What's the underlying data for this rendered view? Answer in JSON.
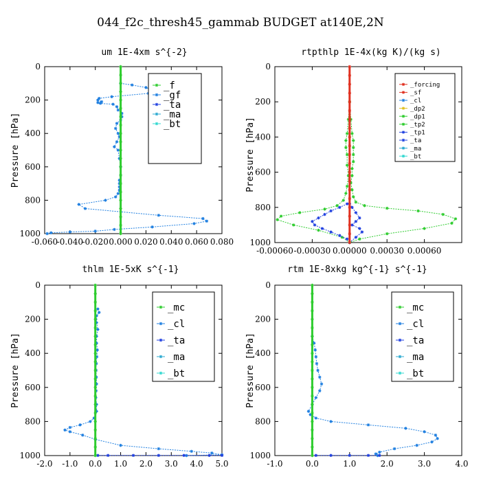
{
  "title": "044_f2c_thresh45_gammab  BUDGET at140E,2N",
  "chart_data": [
    {
      "type": "line",
      "title": "um   1E-4xm s^{-2}",
      "ylabel": "Pressure [hPa]",
      "xlim": [
        -0.06,
        0.08
      ],
      "ylim": [
        1000,
        0
      ],
      "xticks": [
        "-0.060",
        "-0.040",
        "-0.020",
        "0.000",
        "0.020",
        "0.040",
        "0.060",
        "0.080"
      ],
      "yticks": [
        "0",
        "200",
        "400",
        "600",
        "800",
        "1000"
      ],
      "legend": [
        "_f",
        "_gf",
        "_ta",
        "_ma",
        "_bt"
      ],
      "legend_position": "top-right",
      "series": [
        {
          "name": "_gf",
          "color": "#1f7fe0",
          "x": [
            0,
            0.009,
            0.02,
            0.025,
            0.022,
            -0.007,
            -0.017,
            -0.018,
            -0.015,
            -0.018,
            -0.016,
            -0.006,
            -0.003,
            -0.002,
            0.001,
            0.001,
            0.0,
            -0.003,
            -0.004,
            -0.002,
            -0.001,
            -0.003,
            -0.005,
            -0.002,
            -0.001,
            0.0,
            0.0,
            -0.001,
            -0.001,
            -0.001,
            -0.001,
            -0.002,
            -0.004,
            -0.012,
            -0.033,
            -0.028,
            0.03,
            0.065,
            0.068,
            0.058,
            0.025,
            -0.005,
            -0.02,
            -0.04,
            -0.055,
            -0.058
          ],
          "y": [
            100,
            110,
            125,
            140,
            160,
            180,
            190,
            200,
            210,
            215,
            220,
            225,
            240,
            260,
            280,
            300,
            320,
            340,
            370,
            400,
            420,
            450,
            480,
            500,
            550,
            600,
            650,
            680,
            700,
            720,
            740,
            760,
            780,
            800,
            825,
            850,
            890,
            910,
            925,
            940,
            960,
            975,
            985,
            990,
            995,
            1000
          ]
        },
        {
          "name": "_f",
          "color": "#2ecc2e",
          "x": [
            0,
            0,
            0,
            0,
            0,
            0,
            0,
            0,
            0,
            0,
            0,
            0,
            0,
            0,
            0,
            0,
            0,
            0,
            0,
            0,
            0
          ],
          "y": [
            0,
            50,
            100,
            150,
            200,
            250,
            300,
            350,
            400,
            450,
            500,
            550,
            600,
            650,
            700,
            750,
            800,
            850,
            900,
            950,
            1000
          ]
        }
      ]
    },
    {
      "type": "line",
      "title": "rtpthlp   1E-4x(kg K)/(kg s)",
      "ylabel": "Pressure [hPa]",
      "xlim": [
        -0.0006,
        0.0009
      ],
      "ylim": [
        1000,
        0
      ],
      "xticks": [
        "-0.00060",
        "-0.00030",
        "0.00000",
        "0.00030",
        "0.00060"
      ],
      "yticks": [
        "0",
        "200",
        "400",
        "600",
        "800",
        "1000"
      ],
      "legend": [
        "_forcing",
        "_sf",
        "_cl",
        "_dp2",
        "_dp1",
        "_tp2",
        "_tp1",
        "_ta",
        "_ma",
        "_bt"
      ],
      "legend_position": "top-right",
      "series": [
        {
          "name": "_dp1",
          "color": "#2ecc2e",
          "x": [
            0,
            1e-05,
            2e-05,
            3e-05,
            3e-05,
            3e-05,
            3e-05,
            2e-05,
            2e-05,
            1e-05,
            2e-05,
            3e-05,
            5e-05,
            0.00012,
            0.0003,
            0.00055,
            0.00075,
            0.00085,
            0.00082,
            0.0006,
            0.0003,
            8e-05,
            0
          ],
          "y": [
            200,
            300,
            380,
            420,
            460,
            500,
            540,
            580,
            620,
            660,
            700,
            740,
            770,
            790,
            805,
            820,
            840,
            865,
            890,
            920,
            950,
            980,
            1000
          ]
        },
        {
          "name": "_tp2",
          "color": "#2ecc2e",
          "x": [
            0,
            -1e-05,
            -2e-05,
            -3e-05,
            -3e-05,
            -2e-05,
            -2e-05,
            -1e-05,
            -2e-05,
            -3e-05,
            -5e-05,
            -0.0001,
            -0.0002,
            -0.0004,
            -0.00055,
            -0.00058,
            -0.00045,
            -0.00025,
            -6e-05,
            0
          ],
          "y": [
            200,
            300,
            380,
            420,
            460,
            500,
            560,
            620,
            680,
            720,
            760,
            790,
            810,
            830,
            850,
            870,
            900,
            930,
            970,
            1000
          ]
        },
        {
          "name": "_tp1",
          "color": "#2040e0",
          "x": [
            0,
            2e-05,
            5e-05,
            8e-05,
            5e-05,
            2e-05,
            8e-05,
            0.0001,
            5e-05,
            0
          ],
          "y": [
            780,
            800,
            830,
            860,
            880,
            900,
            920,
            940,
            970,
            1000
          ]
        },
        {
          "name": "_ta",
          "color": "#2040e0",
          "x": [
            -2e-05,
            -8e-05,
            -0.00015,
            -0.0002,
            -0.00025,
            -0.0003,
            -0.00028,
            -0.00022,
            -0.00015,
            -8e-05,
            -2e-05
          ],
          "y": [
            780,
            800,
            820,
            840,
            860,
            880,
            900,
            920,
            940,
            960,
            980
          ]
        },
        {
          "name": "_forcing",
          "color": "#e03020",
          "x": [
            0,
            0,
            0,
            0,
            0,
            0,
            0,
            0,
            0,
            0,
            0,
            0,
            0,
            0,
            0,
            0,
            0,
            0,
            0,
            0,
            0
          ],
          "y": [
            0,
            50,
            100,
            150,
            200,
            250,
            300,
            350,
            400,
            450,
            500,
            550,
            600,
            650,
            700,
            750,
            800,
            850,
            900,
            950,
            1000
          ]
        }
      ]
    },
    {
      "type": "line",
      "title": "thlm   1E-5xK  s^{-1}",
      "ylabel": "Pressure [hPa]",
      "xlim": [
        -2.0,
        5.0
      ],
      "ylim": [
        1000,
        0
      ],
      "xticks": [
        "-2.0",
        "-1.0",
        "0.0",
        "1.0",
        "2.0",
        "3.0",
        "4.0",
        "5.0"
      ],
      "yticks": [
        "0",
        "200",
        "400",
        "600",
        "800",
        "1000"
      ],
      "legend": [
        "_mc",
        "_cl",
        "_ta",
        "_ma",
        "_bt"
      ],
      "legend_position": "top-right",
      "series": [
        {
          "name": "_cl",
          "color": "#1f7fe0",
          "x": [
            0.1,
            0.15,
            0.05,
            0.02,
            0.05,
            0.1,
            0.05,
            0.05,
            0.08,
            0.06,
            0.04,
            0.03,
            0.04,
            0.05,
            0.03,
            0.02,
            0.05,
            0.05,
            -0.05,
            -0.2,
            -0.6,
            -1.0,
            -1.2,
            -1.0,
            -0.5,
            0.0,
            1.0,
            2.5,
            3.8,
            4.6,
            5.0,
            3.6
          ],
          "y": [
            140,
            160,
            180,
            200,
            220,
            260,
            300,
            340,
            380,
            420,
            460,
            500,
            540,
            580,
            620,
            660,
            700,
            740,
            780,
            800,
            820,
            835,
            850,
            860,
            880,
            905,
            940,
            960,
            975,
            985,
            995,
            1000
          ]
        },
        {
          "name": "_ta",
          "color": "#2040e0",
          "x": [
            0.1,
            0.5,
            1.5,
            2.5,
            3.5,
            4.5,
            5.0
          ],
          "y": [
            999,
            999,
            999,
            999,
            999,
            999,
            999
          ]
        },
        {
          "name": "_mc",
          "color": "#2ecc2e",
          "x": [
            0,
            0,
            0,
            0,
            0,
            0,
            0,
            0,
            0,
            0,
            0,
            0,
            0,
            0,
            0,
            0,
            0,
            0,
            0,
            0,
            0
          ],
          "y": [
            0,
            50,
            100,
            150,
            200,
            250,
            300,
            350,
            400,
            450,
            500,
            550,
            600,
            650,
            700,
            750,
            800,
            850,
            900,
            950,
            1000
          ]
        }
      ]
    },
    {
      "type": "line",
      "title": "rtm   1E-8xkg kg^{-1} s^{-1}",
      "ylabel": "Pressure [hPa]",
      "xlim": [
        -1.0,
        4.0
      ],
      "ylim": [
        1000,
        0
      ],
      "xticks": [
        "-1.0",
        "0.0",
        "1.0",
        "2.0",
        "3.0",
        "4.0"
      ],
      "yticks": [
        "0",
        "200",
        "400",
        "600",
        "800",
        "1000"
      ],
      "legend": [
        "_mc",
        "_cl",
        "_ta",
        "_ma",
        "_bt"
      ],
      "legend_position": "top-right",
      "series": [
        {
          "name": "_cl",
          "color": "#1f7fe0",
          "x": [
            0.0,
            0.05,
            0.08,
            0.1,
            0.12,
            0.15,
            0.2,
            0.25,
            0.2,
            0.1,
            0.0,
            -0.1,
            -0.05,
            0.1,
            0.5,
            1.5,
            2.5,
            3.0,
            3.3,
            3.35,
            3.2,
            2.8,
            2.2,
            1.8,
            1.7,
            1.75
          ],
          "y": [
            300,
            340,
            380,
            420,
            460,
            500,
            540,
            580,
            620,
            660,
            700,
            740,
            760,
            780,
            800,
            820,
            840,
            860,
            880,
            900,
            920,
            940,
            960,
            980,
            990,
            1000
          ]
        },
        {
          "name": "_ta",
          "color": "#2040e0",
          "x": [
            0.1,
            0.5,
            1.0,
            1.5,
            1.8
          ],
          "y": [
            999,
            999,
            999,
            999,
            999
          ]
        },
        {
          "name": "_mc",
          "color": "#2ecc2e",
          "x": [
            0,
            0,
            0,
            0,
            0,
            0,
            0,
            0,
            0,
            0,
            0,
            0,
            0,
            0,
            0,
            0,
            0,
            0,
            0,
            0,
            0
          ],
          "y": [
            0,
            50,
            100,
            150,
            200,
            250,
            300,
            350,
            400,
            450,
            500,
            550,
            600,
            650,
            700,
            750,
            800,
            850,
            900,
            950,
            1000
          ]
        }
      ]
    }
  ]
}
